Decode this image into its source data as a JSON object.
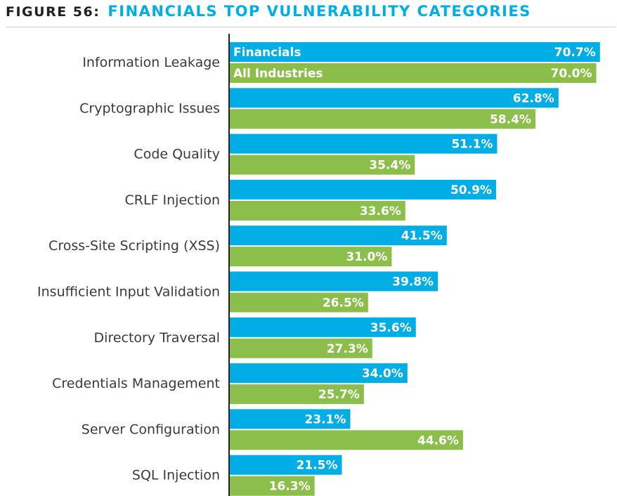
{
  "header": {
    "figure_label": "FIGURE 56:",
    "title": "FINANCIALS TOP VULNERABILITY CATEGORIES"
  },
  "colors": {
    "financials": "#00aee5",
    "all_industries": "#8cbe4b",
    "axis": "#231f20",
    "title": "#00aee5"
  },
  "chart_data": {
    "type": "bar",
    "orientation": "horizontal",
    "title": "FINANCIALS TOP VULNERABILITY CATEGORIES",
    "categories": [
      "Information Leakage",
      "Cryptographic Issues",
      "Code Quality",
      "CRLF Injection",
      "Cross-Site Scripting (XSS)",
      "Insufficient Input Validation",
      "Directory Traversal",
      "Credentials Management",
      "Server Configuration",
      "SQL Injection"
    ],
    "series": [
      {
        "name": "Financials",
        "values": [
          70.7,
          62.8,
          51.1,
          50.9,
          41.5,
          39.8,
          35.6,
          34.0,
          23.1,
          21.5
        ],
        "labels": [
          "70.7%",
          "62.8%",
          "51.1%",
          "50.9%",
          "41.5%",
          "39.8%",
          "35.6%",
          "34.0%",
          "23.1%",
          "21.5%"
        ]
      },
      {
        "name": "All Industries",
        "values": [
          70.0,
          58.4,
          35.4,
          33.6,
          31.0,
          26.5,
          27.3,
          25.7,
          44.6,
          16.3
        ],
        "labels": [
          "70.0%",
          "58.4%",
          "35.4%",
          "33.6%",
          "31.0%",
          "26.5%",
          "27.3%",
          "25.7%",
          "44.6%",
          "16.3%"
        ]
      }
    ],
    "xlim": [
      0,
      71
    ],
    "grid": false,
    "legend": "inside first bars"
  }
}
